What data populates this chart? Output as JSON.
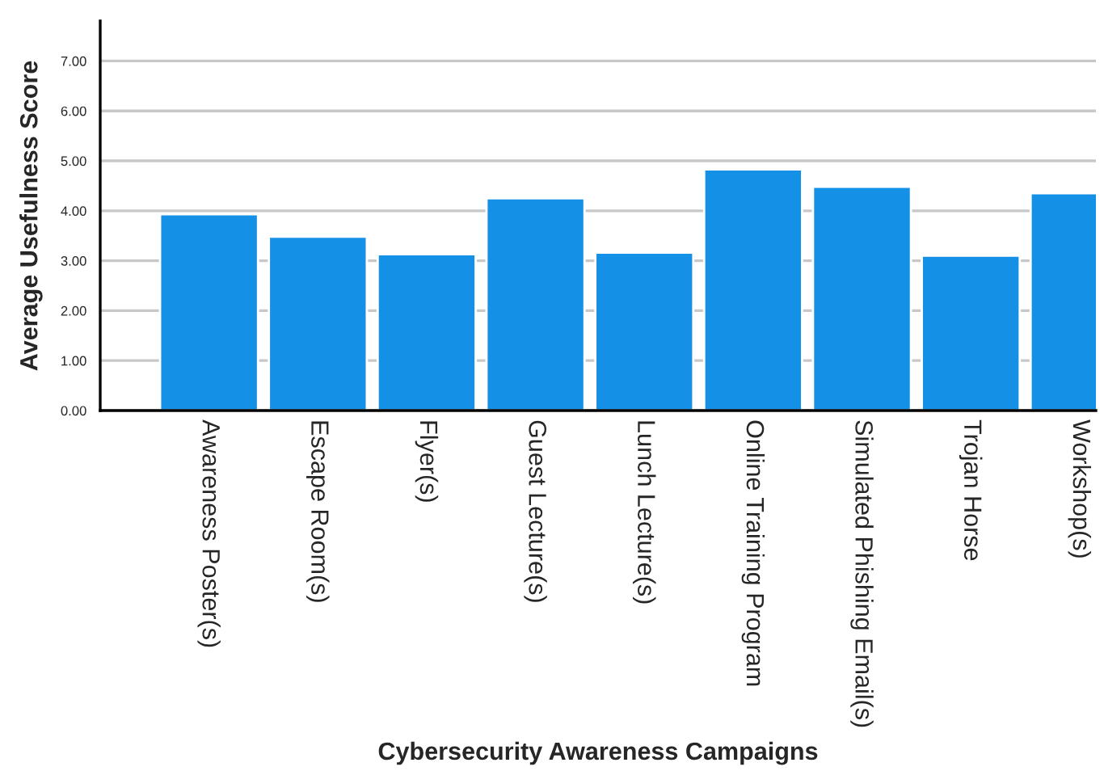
{
  "chart_data": {
    "type": "bar",
    "xlabel": "Cybersecurity Awareness Campaigns",
    "ylabel": "Average Usefulness Score",
    "categories": [
      "Awareness Poster(s)",
      "Escape Room(s)",
      "Flyer(s)",
      "Guest Lecture(s)",
      "Lunch Lecture(s)",
      "Online Training Program",
      "Simulated Phishing Email(s)",
      "Trojan Horse",
      "Workshop(s)"
    ],
    "values": [
      3.93,
      3.48,
      3.13,
      4.25,
      3.16,
      4.83,
      4.48,
      3.1,
      4.35
    ],
    "color": "#1491e6",
    "ylim": [
      0,
      7.8
    ],
    "yticks": [
      {
        "value": 0,
        "label": "0.00"
      },
      {
        "value": 1,
        "label": "1.00"
      },
      {
        "value": 2,
        "label": "2.00"
      },
      {
        "value": 3,
        "label": "3.00"
      },
      {
        "value": 4,
        "label": "4.00"
      },
      {
        "value": 5,
        "label": "5.00"
      },
      {
        "value": 6,
        "label": "6.00"
      },
      {
        "value": 7,
        "label": "7.00"
      }
    ],
    "grid": "y"
  }
}
